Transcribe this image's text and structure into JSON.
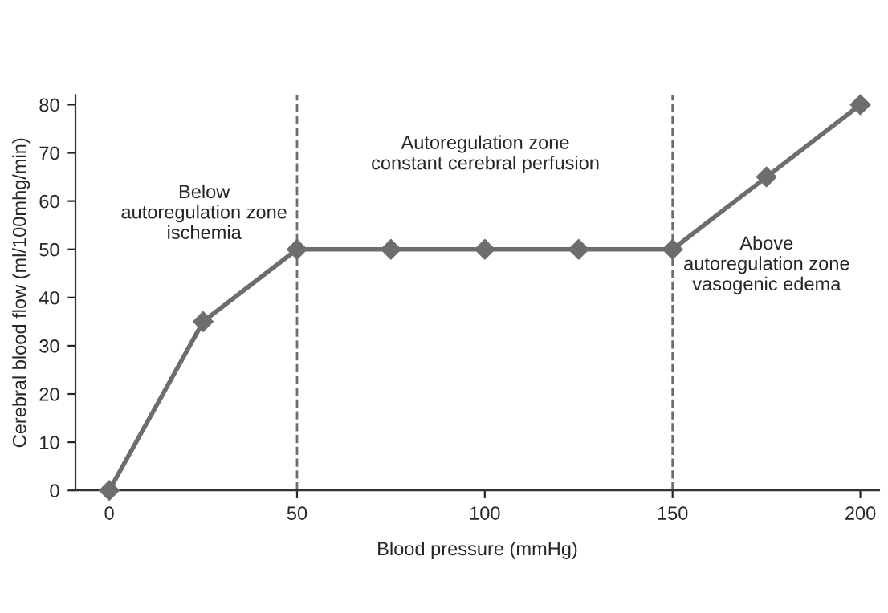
{
  "chart_data": {
    "type": "line",
    "xlabel": "Blood pressure (mmHg)",
    "ylabel": "Cerebral blood flow (ml/100mhg/min)",
    "x": [
      0,
      25,
      50,
      75,
      100,
      125,
      150,
      175,
      200
    ],
    "series": [
      {
        "color": "#6d6d6d",
        "values": [
          0,
          35,
          50,
          50,
          50,
          50,
          50,
          65,
          80
        ]
      }
    ],
    "marker": "diamond",
    "line_style": "solid",
    "xlim": [
      -9,
      205
    ],
    "ylim": [
      0,
      82
    ],
    "xticks": [
      0,
      50,
      100,
      150,
      200
    ],
    "yticks": [
      0,
      10,
      20,
      30,
      40,
      50,
      60,
      70,
      80
    ],
    "grid": false,
    "legend": false,
    "ref_lines": [
      {
        "axis": "x",
        "value": 50,
        "color": "#6d6d6d",
        "line_style": "dashed"
      },
      {
        "axis": "x",
        "value": 150,
        "color": "#6d6d6d",
        "line_style": "dashed"
      }
    ],
    "annotations": [
      "Below\nautoregulation zone\nischemia",
      "Autoregulation zone\nconstant cerebral perfusion",
      "Above\nautoregulation zone\nvasogenic edema"
    ]
  }
}
